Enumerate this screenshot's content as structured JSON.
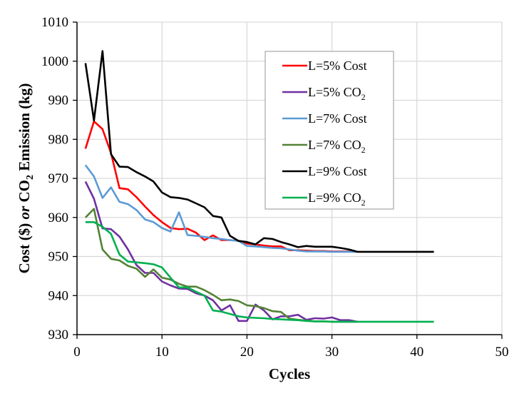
{
  "chart_data": {
    "type": "line",
    "title": "",
    "xlabel": "Cycles",
    "ylabel": {
      "part1": "Cost ($) ",
      "part2": "or",
      "part3": " CO",
      "sub": "2",
      "part4": " Emission (kg)"
    },
    "xlim": [
      0,
      50
    ],
    "ylim": [
      930,
      1010
    ],
    "xticks": [
      0,
      10,
      20,
      30,
      40,
      50
    ],
    "yticks": [
      930,
      940,
      950,
      960,
      970,
      980,
      990,
      1000,
      1010
    ],
    "grid": true,
    "legend_position": "top-center",
    "series": [
      {
        "name": "L=5% Cost",
        "label_main": "L=5% Cost",
        "label_sub": "",
        "color": "#ff0000",
        "x": [
          1,
          2,
          3,
          4,
          5,
          6,
          7,
          8,
          9,
          10,
          11,
          12,
          13,
          14,
          15,
          16,
          17,
          18,
          19,
          20,
          21,
          22,
          23,
          24,
          25,
          26,
          27,
          28,
          29,
          30,
          31,
          32,
          33
        ],
        "values": [
          977.6,
          984.6,
          982.6,
          976.5,
          967.5,
          967.2,
          965.2,
          962.8,
          960.6,
          958.8,
          957.3,
          957.0,
          957.1,
          956.1,
          954.2,
          955.4,
          954.2,
          954.2,
          954.0,
          953.3,
          953.1,
          952.8,
          952.6,
          952.6,
          951.6,
          951.6,
          951.5,
          951.4,
          951.4,
          951.3,
          951.3,
          951.3,
          951.2
        ]
      },
      {
        "name": "L=5% CO2",
        "label_main": "L=5%  CO",
        "label_sub": "2",
        "color": "#7030a0",
        "x": [
          1,
          2,
          3,
          4,
          5,
          6,
          7,
          8,
          9,
          10,
          11,
          12,
          13,
          14,
          15,
          16,
          17,
          18,
          19,
          20,
          21,
          22,
          23,
          24,
          25,
          26,
          27,
          28,
          29,
          30,
          31,
          32,
          33
        ],
        "values": [
          969.2,
          964.8,
          957.2,
          957.0,
          955.1,
          951.8,
          947.8,
          945.8,
          945.8,
          943.6,
          942.6,
          941.8,
          941.7,
          940.6,
          940.0,
          938.8,
          936.2,
          937.5,
          933.5,
          933.5,
          937.7,
          936.2,
          933.9,
          934.7,
          934.7,
          935.1,
          933.8,
          934.2,
          934.1,
          934.4,
          933.7,
          933.7,
          933.3
        ]
      },
      {
        "name": "L=7% Cost",
        "label_main": "L=7% Cost",
        "label_sub": "",
        "color": "#5b9bd5",
        "x": [
          1,
          2,
          3,
          4,
          5,
          6,
          7,
          8,
          9,
          10,
          11,
          12,
          13,
          14,
          15,
          16,
          17,
          18,
          19,
          20,
          21,
          22,
          23,
          24,
          25,
          26,
          27,
          28,
          29,
          30,
          31,
          32,
          33
        ],
        "values": [
          973.4,
          970.5,
          965.0,
          967.7,
          964.0,
          963.4,
          961.9,
          959.5,
          958.8,
          957.3,
          956.4,
          961.3,
          955.5,
          955.3,
          955.0,
          954.7,
          954.5,
          954.2,
          954.0,
          952.7,
          952.6,
          952.4,
          952.2,
          952.1,
          951.8,
          951.5,
          951.3,
          951.3,
          951.3,
          951.2,
          951.2,
          951.2,
          951.2
        ]
      },
      {
        "name": "L=7% CO2",
        "label_main": "L=7%  CO",
        "label_sub": "2",
        "color": "#548235",
        "x": [
          1,
          2,
          3,
          4,
          5,
          6,
          7,
          8,
          9,
          10,
          11,
          12,
          13,
          14,
          15,
          16,
          17,
          18,
          19,
          20,
          21,
          22,
          23,
          24,
          25,
          26,
          27,
          28,
          29,
          30,
          31,
          32,
          33
        ],
        "values": [
          960.0,
          962.2,
          951.8,
          949.4,
          949.0,
          947.6,
          946.9,
          944.8,
          946.7,
          944.6,
          944.1,
          943.0,
          942.3,
          942.3,
          941.4,
          940.2,
          938.8,
          939.0,
          938.6,
          937.5,
          937.3,
          936.8,
          936.0,
          935.8,
          934.1,
          933.8,
          933.6,
          933.4,
          933.4,
          933.3,
          933.3,
          933.3,
          933.3
        ]
      },
      {
        "name": "L=9% Cost",
        "label_main": "L=9% Cost",
        "label_sub": "",
        "color": "#000000",
        "x": [
          1,
          2,
          3,
          4,
          5,
          6,
          7,
          8,
          9,
          10,
          11,
          12,
          13,
          14,
          15,
          16,
          17,
          18,
          19,
          20,
          21,
          22,
          23,
          24,
          25,
          26,
          27,
          28,
          29,
          30,
          31,
          32,
          33,
          34,
          35,
          36,
          37,
          38,
          39,
          40,
          41,
          42
        ],
        "values": [
          999.5,
          984.8,
          1002.6,
          976.2,
          973.0,
          972.9,
          971.6,
          970.5,
          969.2,
          966.4,
          965.2,
          965.0,
          964.6,
          963.6,
          962.6,
          960.4,
          960.0,
          955.3,
          954.0,
          953.7,
          953.1,
          954.7,
          954.5,
          953.7,
          953.1,
          952.4,
          952.7,
          952.5,
          952.5,
          952.5,
          952.2,
          951.8,
          951.2,
          951.2,
          951.2,
          951.2,
          951.2,
          951.2,
          951.2,
          951.2,
          951.2,
          951.2
        ]
      },
      {
        "name": "L=9% CO2",
        "label_main": "L=9%  CO",
        "label_sub": "2",
        "color": "#00b050",
        "x": [
          1,
          2,
          3,
          4,
          5,
          6,
          7,
          8,
          9,
          10,
          11,
          12,
          13,
          14,
          15,
          16,
          17,
          18,
          19,
          20,
          21,
          22,
          23,
          24,
          25,
          26,
          27,
          28,
          29,
          30,
          31,
          32,
          33,
          34,
          35,
          36,
          37,
          38,
          39,
          40,
          41,
          42
        ],
        "values": [
          958.8,
          958.8,
          957.6,
          955.8,
          950.5,
          948.7,
          948.5,
          948.3,
          948.0,
          947.2,
          944.6,
          942.1,
          942.1,
          941.0,
          940.0,
          936.2,
          935.9,
          935.3,
          934.7,
          934.4,
          934.3,
          934.2,
          934.0,
          933.9,
          933.8,
          933.7,
          933.5,
          933.4,
          933.4,
          933.3,
          933.3,
          933.3,
          933.3,
          933.3,
          933.3,
          933.3,
          933.3,
          933.3,
          933.3,
          933.3,
          933.3,
          933.3
        ]
      }
    ]
  }
}
